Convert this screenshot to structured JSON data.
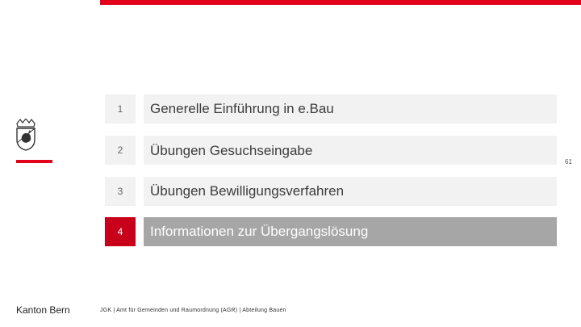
{
  "page": {
    "number": "61"
  },
  "brand": {
    "accent_color": "#e2001a",
    "logo_icon": "bern-coat-of-arms-icon"
  },
  "agenda": {
    "items": [
      {
        "number": "1",
        "label": "Generelle Einführung in e.Bau",
        "active": false
      },
      {
        "number": "2",
        "label": "Übungen Gesuchseingabe",
        "active": false
      },
      {
        "number": "3",
        "label": "Übungen Bewilligungsverfahren",
        "active": false
      },
      {
        "number": "4",
        "label": "Informationen zur Übergangslösung",
        "active": true
      }
    ]
  },
  "footer": {
    "left": "Kanton Bern",
    "center": "JGK | Amt für Gemeinden und Raumordnung (AGR) | Abteilung Bauen"
  }
}
